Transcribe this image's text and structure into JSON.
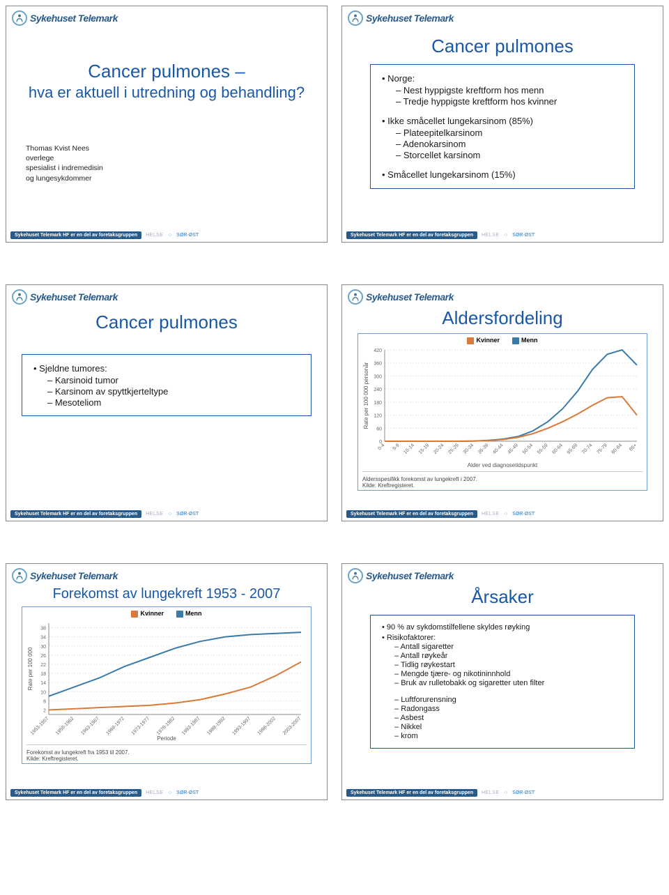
{
  "org_name": "Sykehuset Telemark",
  "footer": {
    "bar": "Sykehuset Telemark HF er en del av foretaksgruppen",
    "helse": "HELSE",
    "region": "SØR-ØST"
  },
  "colors": {
    "title": "#1958a6",
    "box_border": "#1958a6",
    "kvinner": "#d97a3a",
    "menn": "#3a7aa8",
    "grid": "#e6e6e6",
    "axis": "#888888"
  },
  "slide1": {
    "title": "Cancer pulmones –",
    "subtitle": "hva er aktuell i utredning og behandling?",
    "author_name": "Thomas Kvist Nees",
    "author_role1": "overlege",
    "author_role2": "spesialist i indremedisin",
    "author_role3": "og lungesykdommer"
  },
  "slide2": {
    "title": "Cancer pulmones",
    "b1": "Norge:",
    "b1a": "Nest hyppigste kreftform hos menn",
    "b1b": "Tredje hyppigste kreftform hos kvinner",
    "b2": "Ikke småcellet lungekarsinom (85%)",
    "b2a": "Plateepitelkarsinom",
    "b2b": "Adenokarsinom",
    "b2c": "Storcellet karsinom",
    "b3": "Småcellet lungekarsinom (15%)"
  },
  "slide3": {
    "title": "Cancer pulmones",
    "b1": "Sjeldne tumores:",
    "b1a": "Karsinoid tumor",
    "b1b": "Karsinom av spyttkjerteltype",
    "b1c": "Mesoteliom"
  },
  "slide4": {
    "title": "Aldersfordeling",
    "legend_kvinner": "Kvinner",
    "legend_menn": "Menn",
    "xlabel": "Alder ved diagnosetidspunkt",
    "ylabel": "Rate per 100 000 personår",
    "yticks": [
      0,
      60,
      120,
      180,
      240,
      300,
      360,
      420
    ],
    "xcats": [
      "0-4",
      "5-9",
      "10-14",
      "15-19",
      "20-24",
      "25-29",
      "30-34",
      "35-39",
      "40-44",
      "45-49",
      "50-54",
      "55-59",
      "60-64",
      "65-69",
      "70-74",
      "75-79",
      "80-84",
      "85+"
    ],
    "kvinner_vals": [
      0,
      0,
      0,
      0,
      0,
      0,
      1,
      3,
      8,
      18,
      35,
      60,
      90,
      125,
      165,
      200,
      205,
      120
    ],
    "menn_vals": [
      0,
      0,
      0,
      0,
      0,
      0,
      1,
      4,
      10,
      22,
      48,
      90,
      150,
      230,
      330,
      400,
      420,
      350
    ],
    "caption": "Aldersspesifikk forekomst av lungekreft i 2007.",
    "source": "Kilde: Kreftregisteret."
  },
  "slide5": {
    "title": "Forekomst av lungekreft 1953 - 2007",
    "legend_kvinner": "Kvinner",
    "legend_menn": "Menn",
    "xlabel": "Periode",
    "ylabel": "Rate per 100 000",
    "yticks": [
      2,
      6,
      10,
      14,
      18,
      22,
      26,
      30,
      34,
      38
    ],
    "xcats": [
      "1953-1957",
      "1958-1962",
      "1963-1967",
      "1968-1972",
      "1973-1977",
      "1978-1982",
      "1983-1987",
      "1988-1992",
      "1993-1997",
      "1998-2002",
      "2003-2007"
    ],
    "kvinner_vals": [
      2,
      2.5,
      3,
      3.5,
      4,
      5,
      6.5,
      9,
      12,
      17,
      23
    ],
    "menn_vals": [
      8,
      12,
      16,
      21,
      25,
      29,
      32,
      34,
      35,
      35.5,
      36
    ],
    "caption": "Forekomst av lungekreft fra 1953 til 2007.",
    "source": "Kilde: Kreftregisteret."
  },
  "slide6": {
    "title": "Årsaker",
    "b1": "90 % av sykdomstilfellene skyldes røyking",
    "b2": "Risikofaktorer:",
    "b2a": "Antall sigaretter",
    "b2b": "Antall røykeår",
    "b2c": "Tidlig røykestart",
    "b2d": "Mengde tjære- og nikotininnhold",
    "b2e": "Bruk av rulletobakk og sigaretter uten filter",
    "b3a": "Luftforurensning",
    "b3b": "Radongass",
    "b3c": "Asbest",
    "b3d": "Nikkel",
    "b3e": "krom"
  }
}
